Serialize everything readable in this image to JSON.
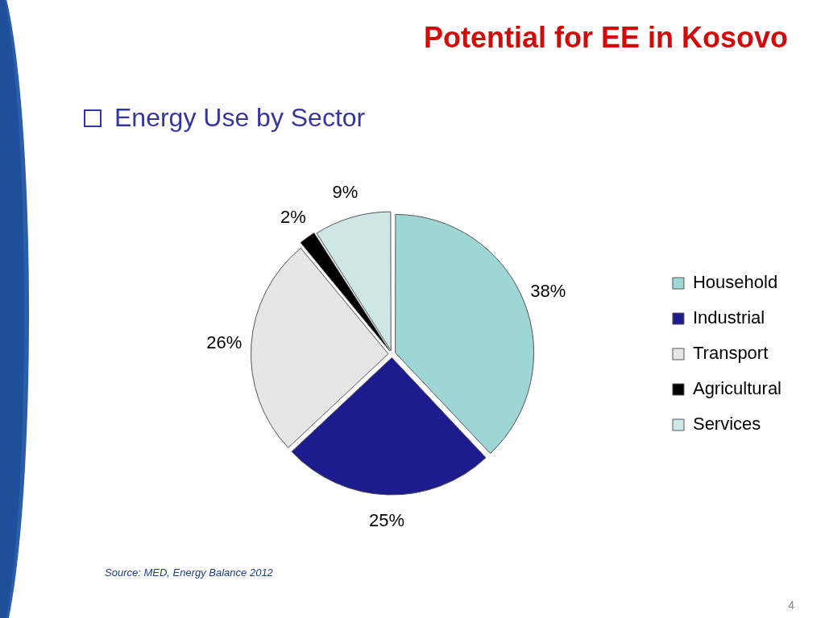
{
  "chart_data": {
    "type": "pie",
    "title": "Potential for EE in Kosovo",
    "subtitle": "Energy Use by Sector",
    "categories": [
      "Household",
      "Industrial",
      "Transport",
      "Agricultural",
      "Services"
    ],
    "values": [
      38,
      25,
      26,
      2,
      9
    ],
    "colors": [
      "#9ed6d6",
      "#1c1c8e",
      "#e6e6e6",
      "#000000",
      "#cfe6e6"
    ],
    "value_labels": [
      "38%",
      "25%",
      "26%",
      "2%",
      "9%"
    ],
    "legend": "right",
    "annotations": [
      "Source: MED, Energy Balance 2012",
      "4"
    ]
  }
}
